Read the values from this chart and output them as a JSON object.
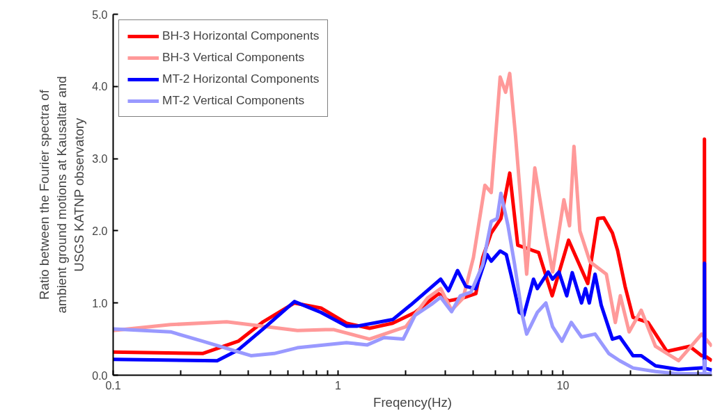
{
  "chart_data": {
    "type": "line",
    "xlabel": "Freqency(Hz)",
    "ylabel": "Ratio between the Fourier spectra of\nambient ground motions at Kausaltar and\nUSGS KATNP observatory",
    "log": "x",
    "grid": false,
    "legend": "top left",
    "marker": "none",
    "line_style": "solid",
    "xlim": [
      0.1,
      46
    ],
    "ylim": [
      0,
      5
    ],
    "xticks": [
      0.1,
      {
        "value": 0.2,
        "label": null
      },
      {
        "value": 0.3,
        "label": null
      },
      {
        "value": 0.4,
        "label": null
      },
      {
        "value": 0.5,
        "label": null
      },
      {
        "value": 0.6,
        "label": null
      },
      {
        "value": 0.7,
        "label": null
      },
      {
        "value": 0.8,
        "label": null
      },
      {
        "value": 0.9,
        "label": null
      },
      1,
      {
        "value": 2,
        "label": null
      },
      {
        "value": 3,
        "label": null
      },
      {
        "value": 4,
        "label": null
      },
      {
        "value": 5,
        "label": null
      },
      {
        "value": 6,
        "label": null
      },
      {
        "value": 7,
        "label": null
      },
      {
        "value": 8,
        "label": null
      },
      {
        "value": 9,
        "label": null
      },
      10,
      {
        "value": 20,
        "label": null
      },
      {
        "value": 30,
        "label": null
      },
      {
        "value": 40,
        "label": null
      }
    ],
    "yticks": [
      {
        "value": 0,
        "label": "0.0"
      },
      {
        "value": 1,
        "label": "1.0"
      },
      {
        "value": 2,
        "label": "2.0"
      },
      {
        "value": 3,
        "label": "3.0"
      },
      {
        "value": 4,
        "label": "4.0"
      },
      {
        "value": 5,
        "label": "5.0"
      }
    ],
    "series": [
      {
        "name": "BH-3 Horizontal Components",
        "color": "#ff0000",
        "x": [
          0.1,
          0.25,
          0.36,
          0.46,
          0.64,
          0.84,
          1.09,
          1.38,
          1.75,
          2.2,
          2.8,
          3.1,
          3.6,
          4.1,
          4.4,
          4.8,
          5.3,
          5.8,
          6.3,
          7.8,
          8.96,
          10.6,
          12.9,
          14.3,
          15.2,
          16.6,
          17.5,
          18.9,
          20.5,
          23.9,
          29.0,
          36.6,
          41.4,
          42.5,
          42.6,
          42.7,
          46
        ],
        "values": [
          0.32,
          0.3,
          0.47,
          0.73,
          1.0,
          0.93,
          0.72,
          0.65,
          0.72,
          0.87,
          1.13,
          1.03,
          1.07,
          1.13,
          1.63,
          1.97,
          2.17,
          2.8,
          1.8,
          1.7,
          1.1,
          1.87,
          1.27,
          2.17,
          2.18,
          1.97,
          1.73,
          1.23,
          0.8,
          0.73,
          0.33,
          0.4,
          0.27,
          0.27,
          3.27,
          0.27,
          0.2
        ]
      },
      {
        "name": "BH-3 Vertical Components",
        "color": "#ff9999",
        "x": [
          0.1,
          0.18,
          0.32,
          0.46,
          0.66,
          0.88,
          0.96,
          1.38,
          2.0,
          2.5,
          2.86,
          3.2,
          3.6,
          4.0,
          4.5,
          4.8,
          5.26,
          5.56,
          5.8,
          6.15,
          6.9,
          7.5,
          8.4,
          9.0,
          10.1,
          10.7,
          11.2,
          11.9,
          13.2,
          15.6,
          17.1,
          18.0,
          19.7,
          22.3,
          25.8,
          32.7,
          41.4,
          46
        ],
        "values": [
          0.62,
          0.7,
          0.74,
          0.68,
          0.62,
          0.63,
          0.63,
          0.5,
          0.67,
          1.07,
          1.2,
          0.9,
          1.07,
          1.63,
          2.63,
          2.53,
          4.13,
          3.92,
          4.18,
          3.33,
          1.4,
          2.87,
          1.93,
          1.43,
          2.43,
          2.07,
          3.17,
          2.0,
          1.57,
          1.4,
          0.73,
          1.1,
          0.6,
          0.9,
          0.4,
          0.2,
          0.57,
          0.4
        ]
      },
      {
        "name": "MT-2 Horizontal Components",
        "color": "#0000ff",
        "x": [
          0.1,
          0.29,
          0.36,
          0.46,
          0.64,
          0.84,
          1.09,
          1.22,
          1.75,
          2.1,
          2.86,
          3.1,
          3.4,
          3.7,
          4.1,
          4.6,
          4.8,
          5.26,
          5.6,
          5.9,
          6.4,
          6.7,
          7.4,
          7.7,
          8.6,
          9.0,
          9.6,
          10.4,
          11.0,
          12.1,
          12.6,
          13.1,
          13.9,
          14.8,
          16.6,
          17.9,
          20.5,
          22.3,
          25.8,
          32.7,
          41.4,
          42.5,
          42.6,
          42.7,
          46
        ],
        "values": [
          0.22,
          0.2,
          0.35,
          0.63,
          1.02,
          0.87,
          0.68,
          0.68,
          0.77,
          0.97,
          1.33,
          1.17,
          1.45,
          1.23,
          1.2,
          1.67,
          1.58,
          1.72,
          1.67,
          1.37,
          0.87,
          0.83,
          1.33,
          1.2,
          1.43,
          1.33,
          1.43,
          1.1,
          1.42,
          1.0,
          1.2,
          1.0,
          1.4,
          0.97,
          0.5,
          0.53,
          0.27,
          0.27,
          0.13,
          0.08,
          0.1,
          0.1,
          1.55,
          0.1,
          0.07
        ]
      },
      {
        "name": "MT-2 Vertical Components",
        "color": "#9999ff",
        "x": [
          0.1,
          0.18,
          0.25,
          0.41,
          0.52,
          0.66,
          1.09,
          1.35,
          1.6,
          1.95,
          2.2,
          2.6,
          2.86,
          3.2,
          3.5,
          3.9,
          4.4,
          4.8,
          5.1,
          5.3,
          5.7,
          6.1,
          6.6,
          6.9,
          7.7,
          8.4,
          9.0,
          9.9,
          10.9,
          12.1,
          13.9,
          16.0,
          17.9,
          20.5,
          25.8,
          32.7,
          41.4,
          42.5,
          42.6,
          42.7,
          46
        ],
        "values": [
          0.64,
          0.6,
          0.47,
          0.27,
          0.3,
          0.38,
          0.45,
          0.42,
          0.52,
          0.5,
          0.83,
          0.98,
          1.08,
          0.88,
          1.1,
          1.15,
          1.53,
          2.13,
          2.17,
          2.52,
          2.07,
          1.53,
          0.83,
          0.57,
          0.87,
          1.0,
          0.67,
          0.47,
          0.73,
          0.53,
          0.57,
          0.3,
          0.2,
          0.1,
          0.05,
          0.02,
          0.02,
          0.02,
          0.2,
          0.02,
          0.02
        ]
      }
    ]
  }
}
